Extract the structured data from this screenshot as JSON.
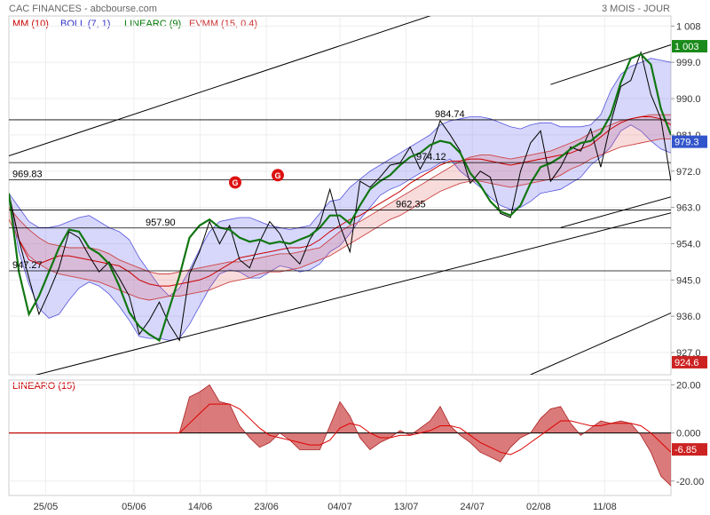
{
  "header": {
    "title": "CAC FINANCES - abcbourse.com",
    "period": "3 MOIS - JOUR"
  },
  "legend": [
    {
      "label": "MM (10)",
      "color": "#cc0000"
    },
    {
      "label": "BOLL (7, 1)",
      "color": "#3333cc"
    },
    {
      "label": "LINEARC (9)",
      "color": "#007700"
    },
    {
      "label": "EVMM (15, 0.4)",
      "color": "#cc3333"
    }
  ],
  "chart_data": [
    {
      "type": "line",
      "panel": "price",
      "x_ticks": [
        "25/05",
        "05/06",
        "14/06",
        "23/06",
        "04/07",
        "13/07",
        "24/07",
        "02/08",
        "11/08"
      ],
      "y_ticks": [
        "1 008",
        "999.0",
        "990.0",
        "981.0",
        "972.0",
        "963.0",
        "954.0",
        "945.0",
        "936.0",
        "927.0"
      ],
      "y_tick_values": [
        1008,
        999,
        990,
        981,
        972,
        963,
        954,
        945,
        936,
        927
      ],
      "ylim": [
        921.5,
        1010.5
      ],
      "levels": [
        {
          "label": "984.74",
          "value": 984.74
        },
        {
          "label": "974.12",
          "value": 974.12
        },
        {
          "label": "969.83",
          "value": 969.83
        },
        {
          "label": "962.35",
          "value": 962.35
        },
        {
          "label": "957.90",
          "value": 957.9
        },
        {
          "label": "947.27",
          "value": 947.27
        }
      ],
      "markers": [
        {
          "label": "G",
          "value": 969.2
        },
        {
          "label": "G",
          "value": 971.0
        }
      ],
      "value_tags": [
        {
          "label": "1 003",
          "value": 1003,
          "color": "#1a8a1a"
        },
        {
          "label": "979.3",
          "value": 979.3,
          "color": "#3355cc"
        },
        {
          "label": "924.6",
          "value": 924.6,
          "color": "#cc2222"
        }
      ],
      "series": [
        {
          "name": "Close",
          "color": "#000000",
          "values": [
            966.5,
            955.0,
            945.5,
            936.5,
            942.0,
            948.0,
            957.0,
            955.5,
            951.0,
            947.0,
            949.5,
            945.5,
            941.0,
            931.5,
            935.0,
            939.5,
            934.0,
            930.0,
            946.5,
            952.0,
            959.5,
            954.0,
            958.5,
            950.0,
            948.0,
            954.5,
            959.5,
            956.5,
            951.5,
            949.0,
            955.0,
            959.0,
            967.5,
            958.5,
            952.0,
            969.5,
            968.0,
            970.5,
            973.5,
            974.0,
            978.0,
            972.5,
            977.0,
            984.5,
            981.0,
            977.0,
            969.0,
            972.0,
            970.5,
            961.5,
            960.5,
            972.0,
            979.0,
            982.0,
            969.5,
            973.0,
            978.0,
            977.0,
            982.5,
            973.0,
            984.0,
            993.0,
            994.5,
            1001.5,
            991.0,
            985.0,
            969.5
          ]
        },
        {
          "name": "Boll upper",
          "color": "#3333cc",
          "values": [
            966.5,
            963.0,
            959.5,
            958.0,
            958.0,
            958.5,
            959.5,
            960.5,
            961.0,
            959.5,
            958.0,
            957.0,
            955.0,
            950.5,
            947.0,
            943.5,
            941.0,
            943.0,
            947.5,
            952.5,
            957.0,
            959.5,
            960.0,
            960.5,
            960.5,
            959.5,
            958.5,
            958.0,
            957.5,
            958.0,
            958.5,
            961.5,
            964.5,
            965.0,
            968.0,
            970.0,
            972.0,
            973.5,
            975.0,
            976.5,
            978.0,
            979.5,
            981.0,
            983.5,
            984.5,
            985.0,
            985.5,
            985.5,
            985.0,
            984.0,
            983.0,
            982.5,
            983.5,
            984.0,
            984.0,
            983.0,
            983.0,
            983.0,
            983.5,
            986.0,
            992.0,
            996.0,
            998.0,
            999.0,
            1000.0,
            999.5,
            999.0
          ]
        },
        {
          "name": "Boll lower",
          "color": "#3333cc",
          "values": [
            966.5,
            952.0,
            944.0,
            938.0,
            935.5,
            936.5,
            940.0,
            943.0,
            944.5,
            943.5,
            941.5,
            938.5,
            935.0,
            931.0,
            930.5,
            930.5,
            930.0,
            930.5,
            934.0,
            938.5,
            943.0,
            946.5,
            947.5,
            947.0,
            945.5,
            945.5,
            947.0,
            948.5,
            948.0,
            947.0,
            947.5,
            949.0,
            952.0,
            953.5,
            956.5,
            960.0,
            963.0,
            966.0,
            967.5,
            968.5,
            970.0,
            971.5,
            972.5,
            974.0,
            975.0,
            972.0,
            970.0,
            968.0,
            965.5,
            963.5,
            962.5,
            963.0,
            964.5,
            966.5,
            967.0,
            967.5,
            969.0,
            970.5,
            973.5,
            975.5,
            978.0,
            982.0,
            983.5,
            982.0,
            979.5,
            977.5,
            976.5
          ]
        },
        {
          "name": "MM (10)",
          "color": "#cc0000",
          "values": [
            966.5,
            955.0,
            950.0,
            949.0,
            950.0,
            951.0,
            951.0,
            950.5,
            950.0,
            949.5,
            949.0,
            948.5,
            947.0,
            945.0,
            944.0,
            943.5,
            943.5,
            944.0,
            944.5,
            945.0,
            946.0,
            947.5,
            949.0,
            950.5,
            951.0,
            951.5,
            952.0,
            952.5,
            953.0,
            953.0,
            953.5,
            955.0,
            957.0,
            958.5,
            960.0,
            961.0,
            962.5,
            964.0,
            965.5,
            967.0,
            969.0,
            970.5,
            972.0,
            973.5,
            974.5,
            974.5,
            975.0,
            975.0,
            974.5,
            974.0,
            973.5,
            974.0,
            974.5,
            975.0,
            975.5,
            976.0,
            976.5,
            977.5,
            978.5,
            980.5,
            982.5,
            984.0,
            985.0,
            985.5,
            985.5,
            985.0,
            983.5
          ]
        },
        {
          "name": "EVMM upper",
          "color": "#cc3333",
          "values": [
            963.0,
            960.0,
            957.5,
            955.5,
            954.0,
            953.5,
            953.0,
            953.0,
            953.0,
            952.5,
            951.5,
            950.0,
            949.0,
            948.0,
            947.0,
            946.5,
            946.5,
            947.0,
            947.5,
            948.0,
            948.5,
            949.0,
            949.5,
            949.5,
            950.0,
            950.5,
            951.0,
            951.5,
            951.5,
            952.0,
            952.5,
            953.0,
            955.0,
            957.0,
            958.5,
            959.5,
            961.0,
            962.5,
            964.0,
            965.5,
            967.0,
            968.5,
            970.0,
            971.5,
            973.0,
            974.5,
            975.5,
            976.0,
            976.0,
            975.5,
            975.0,
            975.5,
            976.0,
            976.5,
            977.0,
            978.0,
            979.0,
            980.0,
            981.5,
            982.5,
            983.5,
            984.5,
            985.0,
            985.5,
            986.0,
            986.0,
            986.0
          ]
        },
        {
          "name": "EVMM lower",
          "color": "#cc3333",
          "values": [
            960.0,
            955.0,
            951.0,
            949.0,
            947.5,
            946.5,
            946.0,
            945.5,
            945.0,
            944.5,
            943.5,
            942.5,
            941.5,
            940.5,
            940.0,
            940.5,
            941.0,
            941.0,
            941.5,
            942.0,
            942.5,
            943.5,
            944.5,
            945.0,
            945.5,
            946.5,
            947.0,
            947.0,
            947.5,
            948.0,
            949.0,
            950.0,
            951.0,
            952.5,
            954.0,
            955.5,
            957.0,
            958.5,
            960.0,
            961.0,
            962.5,
            964.0,
            965.5,
            967.0,
            968.0,
            969.0,
            969.5,
            969.5,
            969.0,
            968.5,
            968.0,
            968.5,
            969.0,
            969.5,
            970.0,
            971.0,
            972.5,
            973.5,
            975.0,
            976.0,
            977.0,
            978.0,
            978.5,
            979.0,
            979.5,
            980.0,
            980.0
          ]
        },
        {
          "name": "LINEARC (9)",
          "color": "#117711",
          "values": [
            966.5,
            947.0,
            936.5,
            941.0,
            947.0,
            953.0,
            957.5,
            957.0,
            953.0,
            951.5,
            949.0,
            943.5,
            937.0,
            933.5,
            931.5,
            930.0,
            938.0,
            946.0,
            955.5,
            958.5,
            960.0,
            958.0,
            957.5,
            955.5,
            954.5,
            955.0,
            954.0,
            954.5,
            954.0,
            955.0,
            956.0,
            958.0,
            961.0,
            961.0,
            959.0,
            963.5,
            967.5,
            969.5,
            971.0,
            973.5,
            975.5,
            976.5,
            978.5,
            979.5,
            979.0,
            976.5,
            971.5,
            968.5,
            964.5,
            962.0,
            961.0,
            963.5,
            969.0,
            973.0,
            974.0,
            975.5,
            977.5,
            979.0,
            979.5,
            981.5,
            986.0,
            994.0,
            1000.0,
            1001.0,
            998.5,
            987.5,
            981.0
          ]
        }
      ],
      "trend_lines": [
        {
          "from": [
            0,
            975.8
          ],
          "to": [
            44,
            1012.2
          ]
        },
        {
          "from": [
            2,
            921.0
          ],
          "to": [
            76,
            968.0
          ]
        },
        {
          "from": [
            54,
            993.5
          ],
          "to": [
            68,
            1005.0
          ]
        },
        {
          "from": [
            55,
            958.0
          ],
          "to": [
            68,
            967.0
          ]
        },
        {
          "from": [
            52,
            921.5
          ],
          "to": [
            68,
            939.0
          ]
        }
      ]
    },
    {
      "type": "area",
      "panel": "oscillator",
      "title": "LINEARO (15)",
      "y_ticks": [
        "20.00",
        "0.000",
        "-20.00"
      ],
      "y_tick_values": [
        20,
        0,
        -20
      ],
      "ylim": [
        -26,
        22
      ],
      "value_tags": [
        {
          "label": "-6.85",
          "value": -6.85,
          "color": "#cc2222"
        }
      ],
      "series": [
        {
          "name": "LINEARO",
          "color": "#cc3333",
          "values": [
            0,
            0,
            0,
            0,
            0,
            0,
            0,
            0,
            0,
            0,
            0,
            0,
            0,
            0,
            0,
            0,
            0,
            0,
            15,
            17,
            20,
            13,
            12,
            3,
            -2,
            -6,
            -4,
            0,
            -3,
            -7,
            -7,
            -7,
            3,
            13,
            7,
            -2,
            -7,
            -4,
            -2,
            1,
            -1,
            2,
            5,
            11,
            3,
            -1,
            -4,
            -8,
            -10,
            -12,
            -6,
            -2,
            0,
            6,
            10,
            11,
            4,
            -1,
            2,
            5,
            4,
            5,
            4,
            -1,
            -8,
            -18,
            -22,
            -8
          ]
        },
        {
          "name": "Signal",
          "color": "#cc0000",
          "values": [
            0,
            0,
            0,
            0,
            0,
            0,
            0,
            0,
            0,
            0,
            0,
            0,
            0,
            0,
            0,
            0,
            0,
            0,
            4,
            8,
            12,
            12,
            12,
            10,
            6,
            2,
            -1,
            -2,
            -3,
            -4,
            -5,
            -5,
            -3,
            2,
            4,
            3,
            0,
            -2,
            -2,
            -1,
            -1,
            0,
            1,
            3,
            3,
            2,
            -1,
            -4,
            -6,
            -8,
            -9,
            -7,
            -4,
            -1,
            2,
            5,
            5,
            4,
            3,
            3,
            4,
            4,
            4,
            3,
            0,
            -4,
            -8,
            -11
          ]
        }
      ]
    }
  ]
}
